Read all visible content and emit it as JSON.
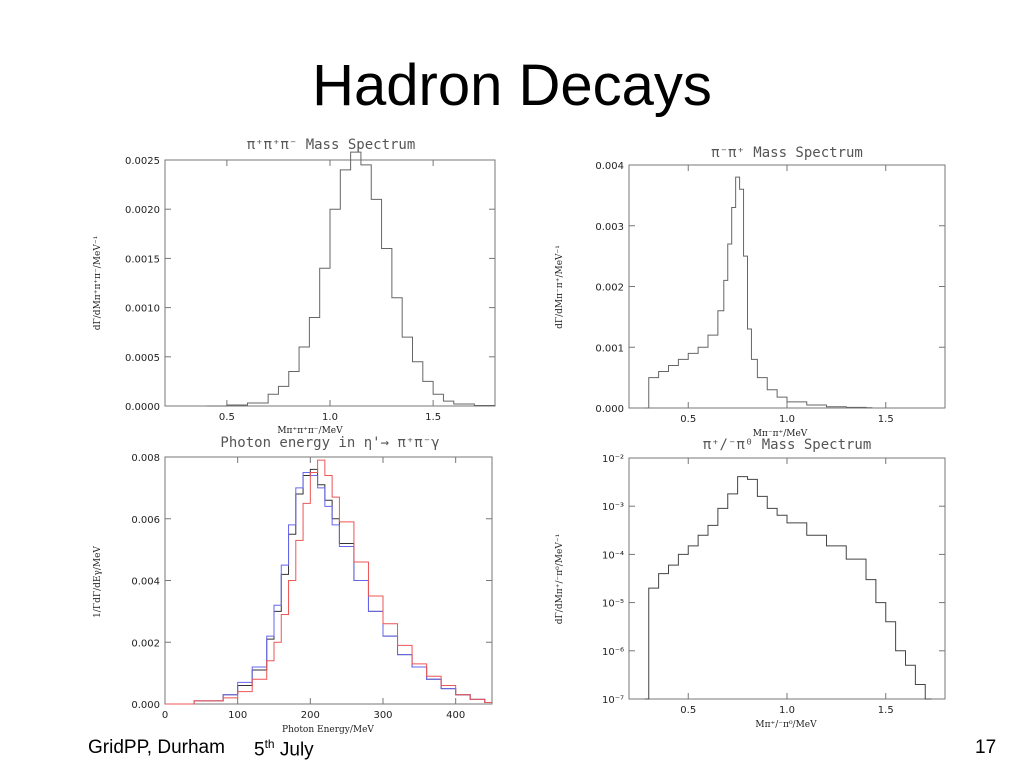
{
  "slide": {
    "title": "Hadron Decays",
    "footer_left": "GridPP, Durham",
    "footer_date_day": "5",
    "footer_date_sup": "th",
    "footer_date_month": "July",
    "page_number": "17"
  },
  "chart_data": [
    {
      "type": "line",
      "style": "histogram",
      "title": "π⁺π⁺π⁻ Mass Spectrum",
      "xlabel": "Mπ⁺π⁺π⁻/MeV",
      "ylabel": "dΓ/dMπ⁺π⁺π⁻/MeV⁻¹",
      "xlim": [
        0.2,
        1.8
      ],
      "ylim": [
        0,
        0.0025
      ],
      "xticks": [
        "0.5",
        "1.0",
        "1.5"
      ],
      "yticks": [
        "0.0000",
        "0.0005",
        "0.0010",
        "0.0015",
        "0.0020",
        "0.0025"
      ],
      "series": [
        {
          "color": "#666666",
          "x": [
            0.4,
            0.5,
            0.6,
            0.7,
            0.75,
            0.8,
            0.85,
            0.9,
            0.95,
            1.0,
            1.05,
            1.1,
            1.15,
            1.2,
            1.25,
            1.3,
            1.35,
            1.4,
            1.45,
            1.5,
            1.55,
            1.6,
            1.7,
            1.8
          ],
          "values": [
            0,
            1e-05,
            3e-05,
            0.00012,
            0.0002,
            0.00035,
            0.0006,
            0.0009,
            0.0014,
            0.002,
            0.0024,
            0.00258,
            0.00245,
            0.0021,
            0.0016,
            0.0011,
            0.0007,
            0.00045,
            0.00025,
            0.00012,
            5e-05,
            2e-05,
            5e-06,
            0
          ]
        }
      ]
    },
    {
      "type": "line",
      "style": "histogram",
      "title": "π⁻π⁺ Mass Spectrum",
      "xlabel": "Mπ⁻π⁺/MeV",
      "ylabel": "dΓ/dMπ⁻π⁺/MeV⁻¹",
      "xlim": [
        0.2,
        1.8
      ],
      "ylim": [
        0,
        0.004
      ],
      "xticks": [
        "0.5",
        "1.0",
        "1.5"
      ],
      "yticks": [
        "0.000",
        "0.001",
        "0.002",
        "0.003",
        "0.004"
      ],
      "series": [
        {
          "color": "#666666",
          "x": [
            0.28,
            0.3,
            0.35,
            0.4,
            0.45,
            0.5,
            0.55,
            0.6,
            0.65,
            0.68,
            0.7,
            0.72,
            0.74,
            0.76,
            0.78,
            0.8,
            0.82,
            0.85,
            0.9,
            0.95,
            1.0,
            1.1,
            1.2,
            1.3,
            1.4
          ],
          "values": [
            0,
            0.0005,
            0.0006,
            0.0007,
            0.0008,
            0.0009,
            0.001,
            0.0012,
            0.0016,
            0.0021,
            0.0027,
            0.0033,
            0.0038,
            0.0036,
            0.0025,
            0.0013,
            0.0008,
            0.0005,
            0.0003,
            0.00018,
            0.0001,
            5e-05,
            2e-05,
            1e-05,
            5e-06
          ]
        }
      ]
    },
    {
      "type": "line",
      "style": "histogram",
      "title": "Photon energy in η'→ π⁺π⁻γ",
      "xlabel": "Photon Energy/MeV",
      "ylabel": "1/ΓdΓ/dEγ/MeV",
      "xlim": [
        0,
        450
      ],
      "ylim": [
        0,
        0.008
      ],
      "xticks": [
        "0",
        "100",
        "200",
        "300",
        "400"
      ],
      "yticks": [
        "0.000",
        "0.002",
        "0.004",
        "0.006",
        "0.008"
      ],
      "series": [
        {
          "color": "#333333",
          "x": [
            0,
            40,
            80,
            100,
            120,
            140,
            150,
            160,
            170,
            180,
            190,
            200,
            210,
            220,
            230,
            240,
            260,
            280,
            300,
            320,
            340,
            360,
            380,
            400,
            420,
            440
          ],
          "values": [
            0,
            0.0001,
            0.0003,
            0.0006,
            0.0011,
            0.0021,
            0.003,
            0.0042,
            0.0055,
            0.0068,
            0.0074,
            0.0076,
            0.0071,
            0.0066,
            0.006,
            0.0052,
            0.004,
            0.003,
            0.0022,
            0.0016,
            0.0012,
            0.0008,
            0.0005,
            0.0003,
            0.00015,
            5e-05
          ]
        },
        {
          "color": "#6666ee",
          "x": [
            0,
            40,
            80,
            100,
            120,
            140,
            150,
            160,
            170,
            180,
            190,
            200,
            210,
            220,
            230,
            240,
            260,
            280,
            300,
            320,
            340,
            360,
            380,
            400,
            420,
            440
          ],
          "values": [
            0,
            0.0001,
            0.0003,
            0.0007,
            0.0012,
            0.0022,
            0.0032,
            0.0045,
            0.0058,
            0.007,
            0.0075,
            0.0074,
            0.007,
            0.0064,
            0.0058,
            0.0051,
            0.004,
            0.003,
            0.0022,
            0.0016,
            0.0012,
            0.0008,
            0.0005,
            0.0003,
            0.00015,
            5e-05
          ]
        },
        {
          "color": "#ee5555",
          "x": [
            0,
            40,
            80,
            100,
            120,
            140,
            150,
            160,
            170,
            180,
            190,
            200,
            210,
            220,
            230,
            240,
            260,
            280,
            300,
            320,
            340,
            360,
            380,
            400,
            420,
            440
          ],
          "values": [
            0,
            0.0001,
            0.0002,
            0.0004,
            0.0008,
            0.0014,
            0.002,
            0.0029,
            0.004,
            0.0053,
            0.0065,
            0.0075,
            0.0079,
            0.0074,
            0.0067,
            0.0059,
            0.0046,
            0.0035,
            0.0026,
            0.0019,
            0.0013,
            0.0009,
            0.0006,
            0.0003,
            0.00015,
            5e-05
          ]
        }
      ]
    },
    {
      "type": "line",
      "style": "histogram",
      "scale": "log",
      "title": "π⁺/⁻π⁰ Mass Spectrum",
      "xlabel": "Mπ⁺/⁻π⁰/MeV",
      "ylabel": "dΓ/dMπ⁺/⁻π⁰/MeV⁻¹",
      "xlim": [
        0.2,
        1.8
      ],
      "ylim": [
        1e-07,
        0.01
      ],
      "xticks": [
        "0.5",
        "1.0",
        "1.5"
      ],
      "yticks": [
        "10⁻⁷",
        "10⁻⁶",
        "10⁻⁵",
        "10⁻⁴",
        "10⁻³",
        "10⁻²"
      ],
      "series": [
        {
          "color": "#444444",
          "x": [
            0.28,
            0.3,
            0.35,
            0.4,
            0.45,
            0.5,
            0.55,
            0.6,
            0.65,
            0.7,
            0.75,
            0.8,
            0.85,
            0.9,
            0.95,
            1.0,
            1.1,
            1.2,
            1.3,
            1.4,
            1.45,
            1.5,
            1.55,
            1.6,
            1.65,
            1.7
          ],
          "values": [
            1e-07,
            2e-05,
            4e-05,
            6e-05,
            0.0001,
            0.00015,
            0.00025,
            0.0004,
            0.0009,
            0.0018,
            0.0041,
            0.0036,
            0.0016,
            0.0009,
            0.00065,
            0.00045,
            0.00025,
            0.00015,
            8e-05,
            3e-05,
            1e-05,
            4e-06,
            1e-06,
            5e-07,
            2e-07,
            1e-07
          ]
        }
      ]
    }
  ]
}
